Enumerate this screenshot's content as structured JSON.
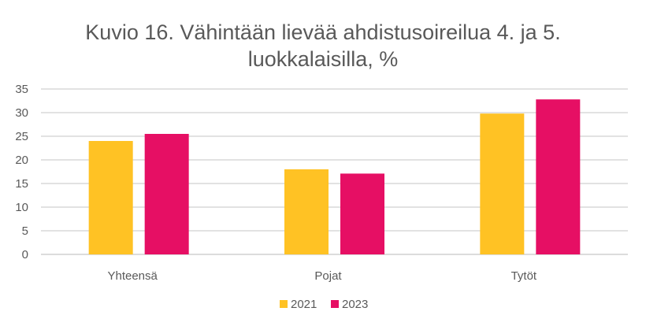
{
  "chart_data": {
    "type": "bar",
    "title_lines": [
      "Kuvio 16. Vähintään lievää ahdistusoireilua 4. ja 5.",
      "luokkalaisilla, %"
    ],
    "categories": [
      "Yhteensä",
      "Pojat",
      "Tytöt"
    ],
    "series": [
      {
        "name": "2021",
        "color": "#FFC224",
        "values": [
          24.0,
          18.0,
          29.8
        ]
      },
      {
        "name": "2023",
        "color": "#E60F64",
        "values": [
          25.5,
          17.1,
          32.8
        ]
      }
    ],
    "ylim": [
      0,
      35
    ],
    "yticks": [
      "0",
      "5",
      "10",
      "15",
      "20",
      "25",
      "30",
      "35"
    ],
    "xlabel": "",
    "ylabel": "",
    "grid": true,
    "legend": "bottom"
  }
}
